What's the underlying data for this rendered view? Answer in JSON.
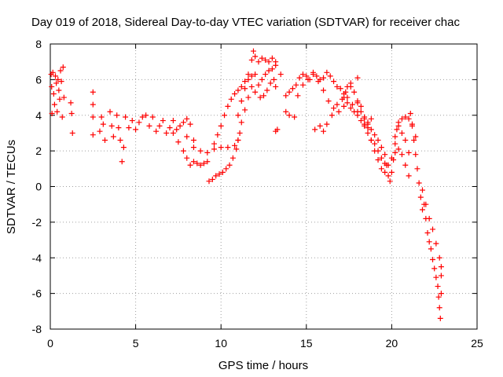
{
  "chart_data": {
    "type": "scatter",
    "title": "Day 019 of 2018, Sidereal Day-to-day VTEC variation (SDTVAR) for receiver chac",
    "xlabel": "GPS time / hours",
    "ylabel": "SDTVAR / TECUs",
    "xlim": [
      0,
      25
    ],
    "ylim": [
      -8,
      8
    ],
    "xticks": [
      "0",
      "5",
      "10",
      "15",
      "20",
      "25"
    ],
    "yticks": [
      "8",
      "6",
      "4",
      "2",
      "0",
      "-2",
      "-4",
      "-6",
      "-8"
    ],
    "grid": true,
    "marker": "plus",
    "series": [
      {
        "name": "SDTVAR",
        "color": "#ff0000",
        "points": [
          [
            0.05,
            6.3
          ],
          [
            0.08,
            5.6
          ],
          [
            0.1,
            4.1
          ],
          [
            0.15,
            6.4
          ],
          [
            0.2,
            5.2
          ],
          [
            0.25,
            4.6
          ],
          [
            0.3,
            6.2
          ],
          [
            0.35,
            5.8
          ],
          [
            0.4,
            4.2
          ],
          [
            0.45,
            6.0
          ],
          [
            0.5,
            5.4
          ],
          [
            0.55,
            4.9
          ],
          [
            0.6,
            6.5
          ],
          [
            0.65,
            5.9
          ],
          [
            0.7,
            3.9
          ],
          [
            0.75,
            6.7
          ],
          [
            0.8,
            5.0
          ],
          [
            1.2,
            4.7
          ],
          [
            1.25,
            4.1
          ],
          [
            1.3,
            3.0
          ],
          [
            2.5,
            5.3
          ],
          [
            2.5,
            4.6
          ],
          [
            2.5,
            3.9
          ],
          [
            2.5,
            2.9
          ],
          [
            2.9,
            3.1
          ],
          [
            3.0,
            3.9
          ],
          [
            3.1,
            3.5
          ],
          [
            3.2,
            2.6
          ],
          [
            3.5,
            4.2
          ],
          [
            3.6,
            3.4
          ],
          [
            3.7,
            2.8
          ],
          [
            3.9,
            4.0
          ],
          [
            4.0,
            3.3
          ],
          [
            4.1,
            2.6
          ],
          [
            4.2,
            1.4
          ],
          [
            4.3,
            2.2
          ],
          [
            4.4,
            3.9
          ],
          [
            4.6,
            3.3
          ],
          [
            4.8,
            3.7
          ],
          [
            5.0,
            3.2
          ],
          [
            5.2,
            3.6
          ],
          [
            5.4,
            3.9
          ],
          [
            5.6,
            4.0
          ],
          [
            5.8,
            3.4
          ],
          [
            6.0,
            3.9
          ],
          [
            6.2,
            3.1
          ],
          [
            6.4,
            3.4
          ],
          [
            6.6,
            3.7
          ],
          [
            6.8,
            3.0
          ],
          [
            7.0,
            3.3
          ],
          [
            7.2,
            3.7
          ],
          [
            7.4,
            3.2
          ],
          [
            7.6,
            3.4
          ],
          [
            7.8,
            3.6
          ],
          [
            8.0,
            3.8
          ],
          [
            8.2,
            3.5
          ],
          [
            8.4,
            2.6
          ],
          [
            7.2,
            3.0
          ],
          [
            7.5,
            2.5
          ],
          [
            7.8,
            2.0
          ],
          [
            8.0,
            1.6
          ],
          [
            8.2,
            1.2
          ],
          [
            8.4,
            1.4
          ],
          [
            8.6,
            1.3
          ],
          [
            8.8,
            1.2
          ],
          [
            9.0,
            1.3
          ],
          [
            9.2,
            1.4
          ],
          [
            8.0,
            2.8
          ],
          [
            8.4,
            2.2
          ],
          [
            8.8,
            2.0
          ],
          [
            9.2,
            1.9
          ],
          [
            9.6,
            2.1
          ],
          [
            10.0,
            2.2
          ],
          [
            10.4,
            2.2
          ],
          [
            10.8,
            2.3
          ],
          [
            9.3,
            0.3
          ],
          [
            9.5,
            0.4
          ],
          [
            9.7,
            0.6
          ],
          [
            9.9,
            0.7
          ],
          [
            10.1,
            0.8
          ],
          [
            10.3,
            1.0
          ],
          [
            10.5,
            1.2
          ],
          [
            10.7,
            1.6
          ],
          [
            10.9,
            2.1
          ],
          [
            11.0,
            2.6
          ],
          [
            11.1,
            3.0
          ],
          [
            9.6,
            2.4
          ],
          [
            9.8,
            2.9
          ],
          [
            10.0,
            3.4
          ],
          [
            10.2,
            4.0
          ],
          [
            10.4,
            4.5
          ],
          [
            10.6,
            4.9
          ],
          [
            10.8,
            5.2
          ],
          [
            11.0,
            5.4
          ],
          [
            11.2,
            5.6
          ],
          [
            11.4,
            5.9
          ],
          [
            11.6,
            6.0
          ],
          [
            11.8,
            6.2
          ],
          [
            12.0,
            6.3
          ],
          [
            11.0,
            4.0
          ],
          [
            11.2,
            4.8
          ],
          [
            11.4,
            5.5
          ],
          [
            11.6,
            6.3
          ],
          [
            11.8,
            7.1
          ],
          [
            11.9,
            7.6
          ],
          [
            12.0,
            7.3
          ],
          [
            12.2,
            7.0
          ],
          [
            12.4,
            7.2
          ],
          [
            12.6,
            7.1
          ],
          [
            12.8,
            7.0
          ],
          [
            13.0,
            7.2
          ],
          [
            13.2,
            7.0
          ],
          [
            11.0,
            2.6
          ],
          [
            11.2,
            3.6
          ],
          [
            11.4,
            4.3
          ],
          [
            11.6,
            5.0
          ],
          [
            11.8,
            5.6
          ],
          [
            12.0,
            5.3
          ],
          [
            12.2,
            5.7
          ],
          [
            12.4,
            6.0
          ],
          [
            12.6,
            6.3
          ],
          [
            12.8,
            6.5
          ],
          [
            13.0,
            6.6
          ],
          [
            13.2,
            6.8
          ],
          [
            12.3,
            5.0
          ],
          [
            12.5,
            5.1
          ],
          [
            12.7,
            5.4
          ],
          [
            12.9,
            5.8
          ],
          [
            13.1,
            6.0
          ],
          [
            13.2,
            5.6
          ],
          [
            13.2,
            3.1
          ],
          [
            13.3,
            3.2
          ],
          [
            13.5,
            6.3
          ],
          [
            13.8,
            4.2
          ],
          [
            14.0,
            4.0
          ],
          [
            14.3,
            3.9
          ],
          [
            13.8,
            5.1
          ],
          [
            14.0,
            5.3
          ],
          [
            14.2,
            5.5
          ],
          [
            14.4,
            5.7
          ],
          [
            14.6,
            6.1
          ],
          [
            14.8,
            6.3
          ],
          [
            15.0,
            6.2
          ],
          [
            15.2,
            6.0
          ],
          [
            15.4,
            6.4
          ],
          [
            15.6,
            6.2
          ],
          [
            15.8,
            6.0
          ],
          [
            16.0,
            6.1
          ],
          [
            16.2,
            6.4
          ],
          [
            16.4,
            6.2
          ],
          [
            16.6,
            5.9
          ],
          [
            16.8,
            5.6
          ],
          [
            17.0,
            5.5
          ],
          [
            17.2,
            5.2
          ],
          [
            17.4,
            5.6
          ],
          [
            17.6,
            5.8
          ],
          [
            17.8,
            5.3
          ],
          [
            18.0,
            4.7
          ],
          [
            18.2,
            4.5
          ],
          [
            18.4,
            3.9
          ],
          [
            18.6,
            3.3
          ],
          [
            14.5,
            5.1
          ],
          [
            14.8,
            5.7
          ],
          [
            15.1,
            6.0
          ],
          [
            15.4,
            6.3
          ],
          [
            15.7,
            5.9
          ],
          [
            16.0,
            5.4
          ],
          [
            16.3,
            4.8
          ],
          [
            16.6,
            4.4
          ],
          [
            16.9,
            4.2
          ],
          [
            17.2,
            4.5
          ],
          [
            15.5,
            3.2
          ],
          [
            15.8,
            3.4
          ],
          [
            16.0,
            3.1
          ],
          [
            16.2,
            3.5
          ],
          [
            16.5,
            4.0
          ],
          [
            16.8,
            4.6
          ],
          [
            17.1,
            4.9
          ],
          [
            17.4,
            5.0
          ],
          [
            17.7,
            4.6
          ],
          [
            18.0,
            4.2
          ],
          [
            18.4,
            3.8
          ],
          [
            18.6,
            3.5
          ],
          [
            18.8,
            3.2
          ],
          [
            19.0,
            2.9
          ],
          [
            19.2,
            2.6
          ],
          [
            19.4,
            2.2
          ],
          [
            19.6,
            1.8
          ],
          [
            19.7,
            1.2
          ],
          [
            19.8,
            0.6
          ],
          [
            19.9,
            0.3
          ],
          [
            20.0,
            0.8
          ],
          [
            20.1,
            1.5
          ],
          [
            20.2,
            2.4
          ],
          [
            20.3,
            3.2
          ],
          [
            20.4,
            3.6
          ],
          [
            20.6,
            3.8
          ],
          [
            20.8,
            3.9
          ],
          [
            21.0,
            3.8
          ],
          [
            21.2,
            3.5
          ],
          [
            21.4,
            2.8
          ],
          [
            18.8,
            2.6
          ],
          [
            19.0,
            2.0
          ],
          [
            19.2,
            1.5
          ],
          [
            19.4,
            1.0
          ],
          [
            19.6,
            0.8
          ],
          [
            19.8,
            1.2
          ],
          [
            20.0,
            1.6
          ],
          [
            20.2,
            1.9
          ],
          [
            20.4,
            2.1
          ],
          [
            20.6,
            1.8
          ],
          [
            20.8,
            1.2
          ],
          [
            21.0,
            0.6
          ],
          [
            18.0,
            4.8
          ],
          [
            18.2,
            4.2
          ],
          [
            18.4,
            3.5
          ],
          [
            18.6,
            3.0
          ],
          [
            18.8,
            2.6
          ],
          [
            19.0,
            2.4
          ],
          [
            19.2,
            2.0
          ],
          [
            19.4,
            1.6
          ],
          [
            19.6,
            1.3
          ],
          [
            20.2,
            2.8
          ],
          [
            20.4,
            3.4
          ],
          [
            20.6,
            3.0
          ],
          [
            20.8,
            2.6
          ],
          [
            21.0,
            1.9
          ],
          [
            21.1,
            4.1
          ],
          [
            21.2,
            3.4
          ],
          [
            21.3,
            2.6
          ],
          [
            21.4,
            1.8
          ],
          [
            21.5,
            1.0
          ],
          [
            21.6,
            0.2
          ],
          [
            21.7,
            -0.6
          ],
          [
            21.8,
            -1.3
          ],
          [
            21.9,
            -1.0
          ],
          [
            22.0,
            -1.8
          ],
          [
            22.1,
            -2.6
          ],
          [
            22.2,
            -3.1
          ],
          [
            22.3,
            -3.5
          ],
          [
            22.4,
            -4.1
          ],
          [
            22.5,
            -4.6
          ],
          [
            22.6,
            -5.1
          ],
          [
            22.7,
            -5.6
          ],
          [
            22.75,
            -6.2
          ],
          [
            22.8,
            -6.8
          ],
          [
            22.85,
            -7.4
          ],
          [
            22.9,
            -6.0
          ],
          [
            22.9,
            -5.0
          ],
          [
            21.8,
            -0.2
          ],
          [
            22.0,
            -1.0
          ],
          [
            22.2,
            -1.8
          ],
          [
            22.4,
            -2.4
          ],
          [
            22.6,
            -3.2
          ],
          [
            22.8,
            -4.0
          ],
          [
            22.9,
            -4.5
          ],
          [
            17.2,
            5.0
          ],
          [
            17.4,
            4.7
          ],
          [
            17.6,
            4.4
          ],
          [
            17.8,
            4.2
          ],
          [
            18.0,
            4.0
          ],
          [
            18.2,
            3.7
          ],
          [
            18.4,
            3.4
          ],
          [
            18.6,
            3.6
          ],
          [
            18.8,
            3.8
          ],
          [
            18.0,
            6.1
          ],
          [
            17.6,
            5.6
          ],
          [
            17.3,
            5.3
          ]
        ]
      }
    ]
  }
}
